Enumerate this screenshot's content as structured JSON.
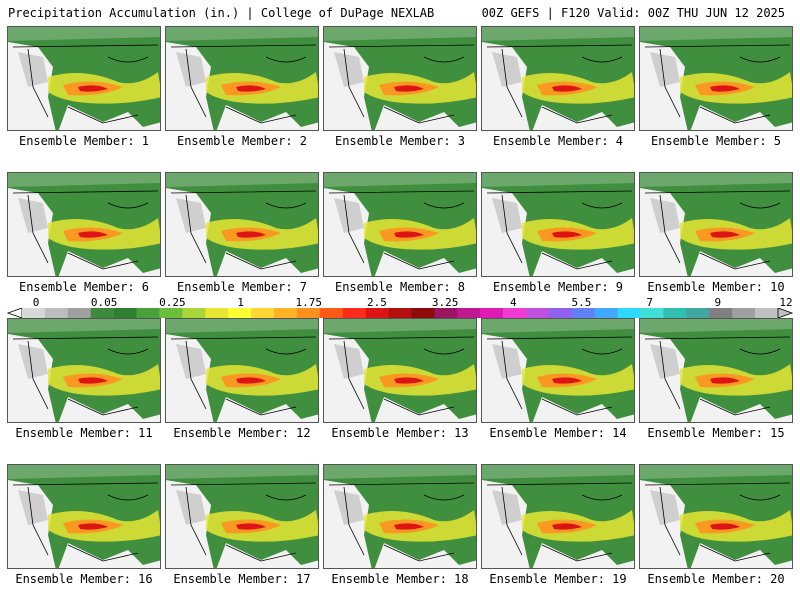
{
  "header": {
    "left": "Precipitation Accumulation (in.) | College of DuPage NEXLAB",
    "right": "00Z GEFS | F120 Valid: 00Z THU JUN 12 2025"
  },
  "members": [
    {
      "label": "Ensemble Member: 1"
    },
    {
      "label": "Ensemble Member: 2"
    },
    {
      "label": "Ensemble Member: 3"
    },
    {
      "label": "Ensemble Member: 4"
    },
    {
      "label": "Ensemble Member: 5"
    },
    {
      "label": "Ensemble Member: 6"
    },
    {
      "label": "Ensemble Member: 7"
    },
    {
      "label": "Ensemble Member: 8"
    },
    {
      "label": "Ensemble Member: 9"
    },
    {
      "label": "Ensemble Member: 10"
    },
    {
      "label": "Ensemble Member: 11"
    },
    {
      "label": "Ensemble Member: 12"
    },
    {
      "label": "Ensemble Member: 13"
    },
    {
      "label": "Ensemble Member: 14"
    },
    {
      "label": "Ensemble Member: 15"
    },
    {
      "label": "Ensemble Member: 16"
    },
    {
      "label": "Ensemble Member: 17"
    },
    {
      "label": "Ensemble Member: 18"
    },
    {
      "label": "Ensemble Member: 19"
    },
    {
      "label": "Ensemble Member: 20"
    }
  ],
  "colorbar": {
    "tick_labels": [
      "0",
      "0.05",
      "0.25",
      "1",
      "1.75",
      "2.5",
      "3.25",
      "4",
      "5.5",
      "7",
      "9",
      "12"
    ],
    "colors": [
      "#d8d8d8",
      "#bdbdbd",
      "#a0a0a0",
      "#3d8a3d",
      "#2f7f2f",
      "#4aa03a",
      "#6cbf3a",
      "#a8d63a",
      "#e6e633",
      "#ffff33",
      "#ffd633",
      "#ffb428",
      "#ff9020",
      "#ff5a1a",
      "#ff2a1a",
      "#dd1414",
      "#b40f0f",
      "#8c0a0a",
      "#9a1460",
      "#c01890",
      "#e01ab4",
      "#f03ad4",
      "#c050e0",
      "#9060ee",
      "#6080f8",
      "#40a8ff",
      "#30d8ff",
      "#40e0d8",
      "#30c0b0",
      "#40a8a0",
      "#808080",
      "#a0a0a0",
      "#c0c0c0"
    ]
  }
}
